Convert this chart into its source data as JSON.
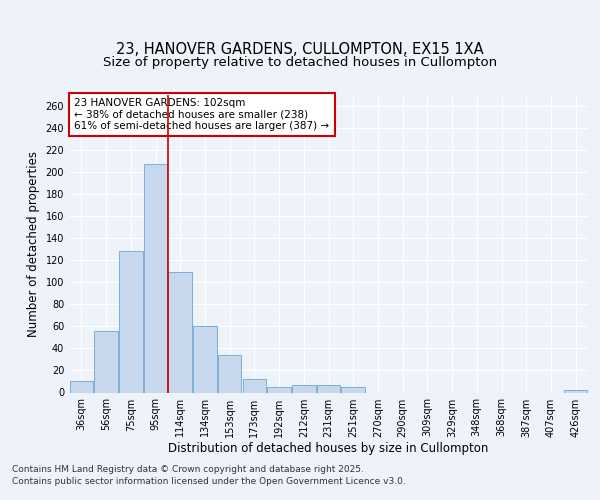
{
  "title_line1": "23, HANOVER GARDENS, CULLOMPTON, EX15 1XA",
  "title_line2": "Size of property relative to detached houses in Cullompton",
  "xlabel": "Distribution of detached houses by size in Cullompton",
  "ylabel": "Number of detached properties",
  "categories": [
    "36sqm",
    "56sqm",
    "75sqm",
    "95sqm",
    "114sqm",
    "134sqm",
    "153sqm",
    "173sqm",
    "192sqm",
    "212sqm",
    "231sqm",
    "251sqm",
    "270sqm",
    "290sqm",
    "309sqm",
    "329sqm",
    "348sqm",
    "368sqm",
    "387sqm",
    "407sqm",
    "426sqm"
  ],
  "values": [
    10,
    56,
    128,
    207,
    109,
    60,
    34,
    12,
    5,
    7,
    7,
    5,
    0,
    0,
    0,
    0,
    0,
    0,
    0,
    0,
    2
  ],
  "bar_color": "#c8d8ec",
  "bar_edge_color": "#7bafd4",
  "red_line_x": 3.5,
  "annotation_text": "23 HANOVER GARDENS: 102sqm\n← 38% of detached houses are smaller (238)\n61% of semi-detached houses are larger (387) →",
  "annotation_box_color": "#ffffff",
  "annotation_box_edge": "#cc0000",
  "ylim": [
    0,
    270
  ],
  "yticks": [
    0,
    20,
    40,
    60,
    80,
    100,
    120,
    140,
    160,
    180,
    200,
    220,
    240,
    260
  ],
  "footer_line1": "Contains HM Land Registry data © Crown copyright and database right 2025.",
  "footer_line2": "Contains public sector information licensed under the Open Government Licence v3.0.",
  "bg_color": "#eef2f9",
  "grid_color": "#ffffff",
  "title_fontsize": 10.5,
  "subtitle_fontsize": 9.5,
  "axis_label_fontsize": 8.5,
  "tick_fontsize": 7,
  "annotation_fontsize": 7.5,
  "footer_fontsize": 6.5
}
